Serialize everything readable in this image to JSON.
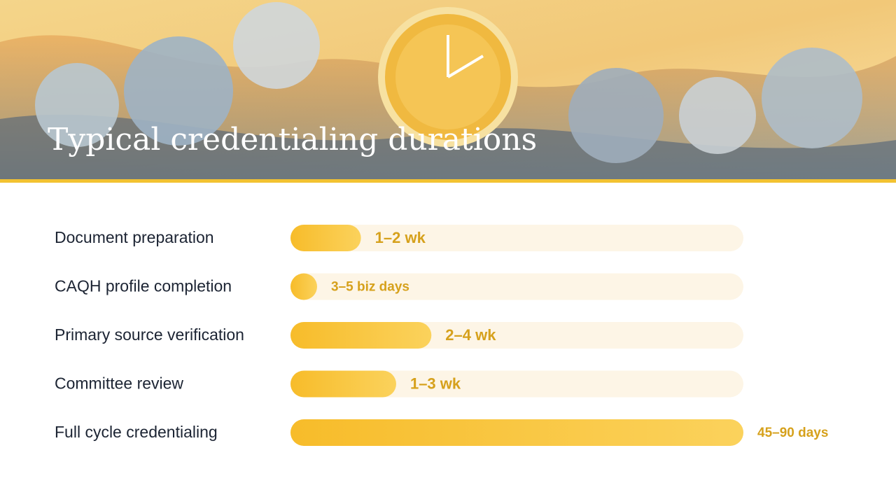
{
  "chart_data": {
    "type": "bar",
    "orientation": "horizontal",
    "title": "Typical credentialing durations",
    "categories": [
      "Document preparation",
      "CAQH profile completion",
      "Primary source verification",
      "Committee review",
      "Full cycle credentialing"
    ],
    "values": [
      14,
      5,
      28,
      21,
      90
    ],
    "value_labels": [
      "1–2 wk",
      "3–5 biz days",
      "2–4 wk",
      "1–3 wk",
      "45–90 days"
    ],
    "xlim": [
      0,
      90
    ],
    "color": "#f7bc2a"
  }
}
